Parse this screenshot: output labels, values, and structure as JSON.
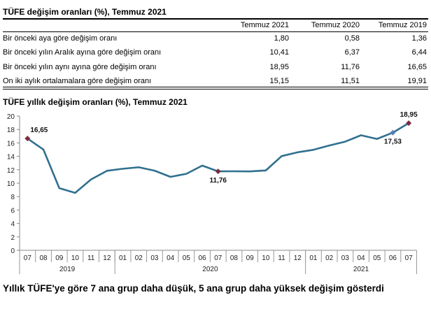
{
  "table": {
    "title": "TÜFE değişim oranları (%), Temmuz 2021",
    "columns": [
      "Temmuz 2021",
      "Temmuz 2020",
      "Temmuz 2019"
    ],
    "rows": [
      {
        "label": "Bir önceki aya göre değişim oranı",
        "values": [
          "1,80",
          "0,58",
          "1,36"
        ]
      },
      {
        "label": "Bir önceki yılın Aralık ayına göre değişim oranı",
        "values": [
          "10,41",
          "6,37",
          "6,44"
        ]
      },
      {
        "label": "Bir önceki yılın aynı ayına göre değişim oranı",
        "values": [
          "18,95",
          "11,76",
          "16,65"
        ]
      },
      {
        "label": "On iki aylık ortalamalara göre değişim oranı",
        "values": [
          "15,15",
          "11,51",
          "19,91"
        ]
      }
    ]
  },
  "chart_data": {
    "type": "line",
    "title": "TÜFE yıllık değişim oranları (%), Temmuz 2021",
    "categories": [
      "07",
      "08",
      "09",
      "10",
      "11",
      "12",
      "01",
      "02",
      "03",
      "04",
      "05",
      "06",
      "07",
      "08",
      "09",
      "10",
      "11",
      "12",
      "01",
      "02",
      "03",
      "04",
      "05",
      "06",
      "07"
    ],
    "groups": [
      {
        "label": "2019",
        "count": 6
      },
      {
        "label": "2020",
        "count": 12
      },
      {
        "label": "2021",
        "count": 7
      }
    ],
    "values": [
      16.65,
      15.01,
      9.26,
      8.55,
      10.56,
      11.84,
      12.15,
      12.37,
      11.86,
      10.94,
      11.39,
      12.62,
      11.76,
      11.77,
      11.75,
      11.89,
      14.03,
      14.6,
      14.97,
      15.61,
      16.19,
      17.14,
      16.59,
      17.53,
      18.95
    ],
    "ylim": [
      0,
      20
    ],
    "yticks": [
      0,
      2,
      4,
      6,
      8,
      10,
      12,
      14,
      16,
      18,
      20
    ],
    "grid": false,
    "line_color": "#31708f",
    "annotations": [
      {
        "index": 0,
        "label": "16,65",
        "position": "above",
        "marker_color": "#7b2c3f"
      },
      {
        "index": 12,
        "label": "11,76",
        "position": "below",
        "marker_color": "#7b2c3f"
      },
      {
        "index": 23,
        "label": "17,53",
        "position": "below",
        "marker_color": "#5b7fb5"
      },
      {
        "index": 24,
        "label": "18,95",
        "position": "above",
        "marker_color": "#7b2c3f"
      }
    ]
  },
  "headline": "Yıllık TÜFE'ye göre 7 ana grup daha düşük, 5 ana grup daha yüksek değişim gösterdi"
}
